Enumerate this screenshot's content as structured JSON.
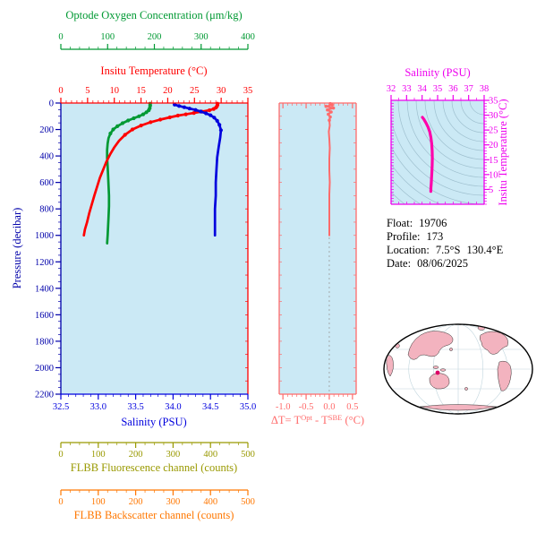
{
  "colors": {
    "oxygen": "#009933",
    "temperature": "#ff0000",
    "salinity": "#0000dd",
    "pressure": "#0000aa",
    "delta": "#ff6b6b",
    "ts_axis": "#ee00ee",
    "ts_curve": "#ff00aa",
    "fluorescence": "#999900",
    "backscatter": "#ff7700",
    "plot_bg": "#cbe9f5",
    "contour": "#9fc0cf",
    "land": "#f3b3bf",
    "ocean": "#ffffff",
    "marker": "#dd0066",
    "zero_line": "#999999"
  },
  "info": {
    "float_label": "Float:",
    "float_value": "19706",
    "profile_label": "Profile:",
    "profile_value": "173",
    "location_label": "Location:",
    "location_value_1": "7.5°S",
    "location_value_2": "130.4°E",
    "date_label": "Date:",
    "date_value": "08/06/2025"
  },
  "chart_data": [
    {
      "id": "pressure_profiles",
      "type": "line",
      "y_axis": {
        "label": "Pressure (decibar)",
        "range": [
          0,
          2200
        ],
        "ticks": [
          0,
          200,
          400,
          600,
          800,
          1000,
          1200,
          1400,
          1600,
          1800,
          2000,
          2200
        ],
        "minor_step": 50,
        "color": "#0000aa"
      },
      "x_axes": [
        {
          "id": "oxygen",
          "label": "Optode Oxygen Concentration (μm/kg)",
          "range": [
            0,
            400
          ],
          "ticks": [
            0,
            100,
            200,
            300,
            400
          ],
          "tick_labels": [
            "0",
            "100",
            "200",
            "300",
            "400"
          ],
          "minor_step": 20,
          "color": "#009933"
        },
        {
          "id": "temperature",
          "label": "Insitu Temperature (°C)",
          "range": [
            0,
            35
          ],
          "ticks": [
            0,
            5,
            10,
            15,
            20,
            25,
            30,
            35
          ],
          "tick_labels": [
            "0",
            "5",
            "10",
            "15",
            "20",
            "25",
            "30",
            "35"
          ],
          "minor_step": 1,
          "color": "#ff0000"
        },
        {
          "id": "salinity",
          "label": "Salinity (PSU)",
          "range": [
            32.5,
            35.0
          ],
          "ticks": [
            32.5,
            33.0,
            33.5,
            34.0,
            34.5,
            35.0
          ],
          "tick_labels": [
            "32.5",
            "33.0",
            "33.5",
            "34.0",
            "34.5",
            "35.0"
          ],
          "minor_step": 0.1,
          "color": "#0000dd"
        },
        {
          "id": "fluorescence",
          "label": "FLBB Fluorescence channel (counts)",
          "range": [
            0,
            500
          ],
          "ticks": [
            0,
            100,
            200,
            300,
            400,
            500
          ],
          "tick_labels": [
            "0",
            "100",
            "200",
            "300",
            "400",
            "500"
          ],
          "minor_step": 25,
          "color": "#999900"
        },
        {
          "id": "backscatter",
          "label": "FLBB Backscatter channel (counts)",
          "range": [
            0,
            500
          ],
          "ticks": [
            0,
            100,
            200,
            300,
            400,
            500
          ],
          "tick_labels": [
            "0",
            "100",
            "200",
            "300",
            "400",
            "500"
          ],
          "minor_step": 25,
          "color": "#ff7700"
        }
      ],
      "series": [
        {
          "name": "oxygen",
          "x_axis": "oxygen",
          "color": "#009933",
          "points": [
            [
              191,
              5
            ],
            [
              191,
              20
            ],
            [
              190,
              40
            ],
            [
              188,
              55
            ],
            [
              183,
              70
            ],
            [
              176,
              85
            ],
            [
              167,
              100
            ],
            [
              156,
              115
            ],
            [
              144,
              132
            ],
            [
              132,
              152
            ],
            [
              121,
              175
            ],
            [
              112,
              200
            ],
            [
              106,
              230
            ],
            [
              102,
              265
            ],
            [
              100,
              305
            ],
            [
              99,
              355
            ],
            [
              99,
              415
            ],
            [
              100,
              480
            ],
            [
              101,
              550
            ],
            [
              102,
              625
            ],
            [
              103,
              700
            ],
            [
              103,
              780
            ],
            [
              102,
              860
            ],
            [
              101,
              930
            ],
            [
              100,
              1000
            ],
            [
              99,
              1060
            ]
          ]
        },
        {
          "name": "temperature",
          "x_axis": "temperature",
          "color": "#ff0000",
          "points": [
            [
              29.3,
              5
            ],
            [
              29.3,
              15
            ],
            [
              29.2,
              25
            ],
            [
              29.0,
              35
            ],
            [
              28.6,
              45
            ],
            [
              27.8,
              55
            ],
            [
              26.4,
              65
            ],
            [
              24.9,
              75
            ],
            [
              23.4,
              85
            ],
            [
              21.9,
              95
            ],
            [
              20.4,
              108
            ],
            [
              18.6,
              125
            ],
            [
              16.8,
              145
            ],
            [
              15.0,
              170
            ],
            [
              13.4,
              200
            ],
            [
              12.0,
              240
            ],
            [
              10.9,
              285
            ],
            [
              10.0,
              335
            ],
            [
              9.2,
              390
            ],
            [
              8.5,
              445
            ],
            [
              7.9,
              505
            ],
            [
              7.3,
              565
            ],
            [
              6.8,
              630
            ],
            [
              6.3,
              695
            ],
            [
              5.8,
              765
            ],
            [
              5.3,
              835
            ],
            [
              4.9,
              900
            ],
            [
              4.5,
              955
            ],
            [
              4.3,
              1000
            ]
          ]
        },
        {
          "name": "salinity",
          "x_axis": "salinity",
          "color": "#0000dd",
          "points": [
            [
              34.02,
              12
            ],
            [
              34.08,
              22
            ],
            [
              34.15,
              32
            ],
            [
              34.22,
              42
            ],
            [
              34.3,
              52
            ],
            [
              34.37,
              64
            ],
            [
              34.44,
              78
            ],
            [
              34.5,
              92
            ],
            [
              34.55,
              110
            ],
            [
              34.59,
              135
            ],
            [
              34.62,
              165
            ],
            [
              34.64,
              205
            ],
            [
              34.63,
              260
            ],
            [
              34.61,
              330
            ],
            [
              34.59,
              410
            ],
            [
              34.58,
              500
            ],
            [
              34.57,
              600
            ],
            [
              34.57,
              700
            ],
            [
              34.56,
              800
            ],
            [
              34.56,
              900
            ],
            [
              34.56,
              1000
            ]
          ]
        }
      ]
    },
    {
      "id": "delta_t",
      "type": "line",
      "x_axis": {
        "label_parts": {
          "p1": "ΔT= T",
          "sup1": "Opt",
          "p2": " - T",
          "sup2": "SBE",
          "p3": " (°C)"
        },
        "range": [
          -1.08,
          0.58
        ],
        "ticks": [
          -1.0,
          -0.5,
          0.0,
          0.5
        ],
        "tick_labels": [
          "-1.0",
          "-0.5",
          "0.0",
          "0.5"
        ],
        "minor_step": 0.1,
        "color": "#ff6b6b"
      },
      "y_axis": {
        "range": [
          0,
          2200
        ],
        "minor_step": 100
      },
      "zero_line": 0,
      "series": [
        {
          "name": "delta-t",
          "color": "#ff6b6b",
          "points": [
            [
              0.02,
              5
            ],
            [
              0.06,
              15
            ],
            [
              -0.07,
              25
            ],
            [
              0.09,
              38
            ],
            [
              -0.04,
              52
            ],
            [
              0.04,
              68
            ],
            [
              -0.02,
              85
            ],
            [
              0.02,
              105
            ],
            [
              0.0,
              130
            ],
            [
              0.01,
              170
            ],
            [
              -0.01,
              215
            ],
            [
              0.0,
              270
            ],
            [
              0.01,
              340
            ],
            [
              0.0,
              420
            ],
            [
              0.0,
              510
            ],
            [
              0.01,
              600
            ],
            [
              0.0,
              690
            ],
            [
              0.0,
              780
            ],
            [
              0.0,
              880
            ],
            [
              0.0,
              1000
            ]
          ]
        }
      ]
    },
    {
      "id": "ts_diagram",
      "type": "line",
      "x_axis": {
        "label": "Salinity (PSU)",
        "range": [
          32,
          38
        ],
        "ticks": [
          32,
          33,
          34,
          35,
          36,
          37,
          38
        ],
        "tick_labels": [
          "32",
          "33",
          "34",
          "35",
          "36",
          "37",
          "38"
        ],
        "minor_step": 0.5,
        "color": "#ee00ee"
      },
      "y_axis": {
        "label": "Insitu Temperature (°C)",
        "range": [
          0,
          35
        ],
        "ticks": [
          5,
          10,
          15,
          20,
          25,
          30,
          35
        ],
        "tick_labels": [
          "5",
          "10",
          "15",
          "20",
          "25",
          "30",
          "35"
        ],
        "minor_step": 1,
        "color": "#ee00ee"
      },
      "series": [
        {
          "name": "ts-curve",
          "color": "#ff00aa",
          "points": [
            [
              34.02,
              29.3
            ],
            [
              34.12,
              28.6
            ],
            [
              34.25,
              27.4
            ],
            [
              34.38,
              26.0
            ],
            [
              34.49,
              24.4
            ],
            [
              34.57,
              22.5
            ],
            [
              34.62,
              20.4
            ],
            [
              34.65,
              18.0
            ],
            [
              34.66,
              15.5
            ],
            [
              34.65,
              13.0
            ],
            [
              34.63,
              10.8
            ],
            [
              34.61,
              8.8
            ],
            [
              34.59,
              7.0
            ],
            [
              34.57,
              5.5
            ],
            [
              34.56,
              4.3
            ]
          ]
        }
      ]
    }
  ]
}
